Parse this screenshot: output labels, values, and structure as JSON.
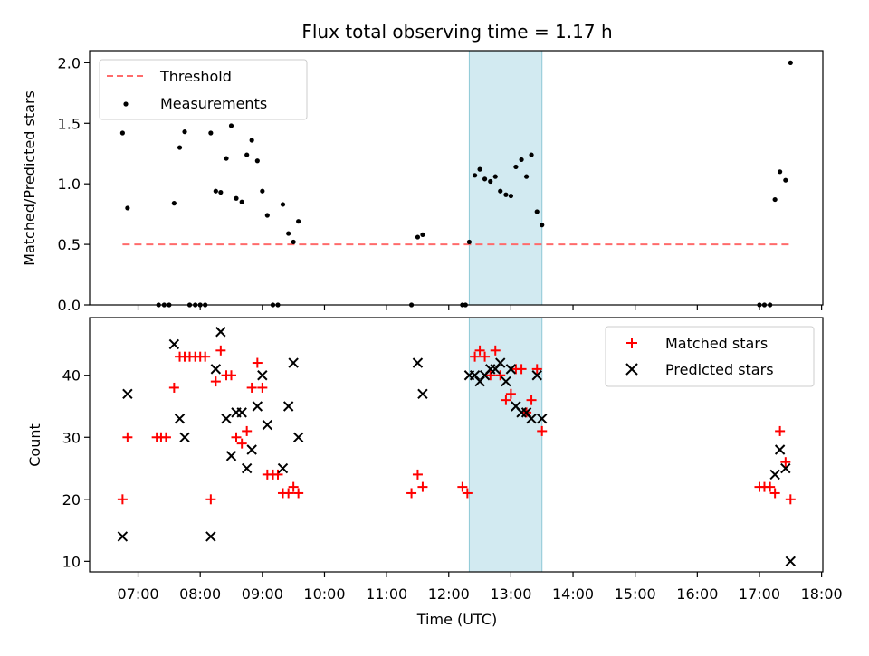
{
  "chart_data": {
    "title": "Flux total observing time = 1.17 h",
    "type": "scatter",
    "xlabel": "Time (UTC)",
    "xlim": [
      6.22,
      18.02
    ],
    "x_ticks": [
      "07:00",
      "08:00",
      "09:00",
      "10:00",
      "11:00",
      "12:00",
      "13:00",
      "14:00",
      "15:00",
      "16:00",
      "17:00",
      "18:00"
    ],
    "x_tick_values": [
      7,
      8,
      9,
      10,
      11,
      12,
      13,
      14,
      15,
      16,
      17,
      18
    ],
    "highlight_span": {
      "x0": 12.33,
      "x1": 13.5,
      "color": "#add8e6"
    },
    "top": {
      "ylabel": "Matched/Predicted stars",
      "ylim": [
        0,
        2.1
      ],
      "y_ticks": [
        "0.0",
        "0.5",
        "1.0",
        "1.5",
        "2.0"
      ],
      "y_tick_values": [
        0,
        0.5,
        1.0,
        1.5,
        2.0
      ],
      "legend": {
        "placement": "upper-left",
        "threshold_label": "Threshold",
        "measurements_label": "Measurements"
      },
      "threshold": {
        "value": 0.5,
        "x0": 6.75,
        "x1": 17.5,
        "color": "#ff6b6b"
      },
      "measurements": {
        "color": "#000000",
        "x": [
          6.75,
          6.83,
          7.33,
          7.42,
          7.5,
          7.58,
          7.67,
          7.75,
          7.83,
          7.92,
          8.0,
          8.08,
          8.17,
          8.25,
          8.33,
          8.42,
          8.5,
          8.58,
          8.67,
          8.75,
          8.83,
          8.92,
          9.0,
          9.08,
          9.17,
          9.25,
          9.33,
          9.42,
          9.5,
          9.58,
          11.4,
          11.5,
          11.58,
          12.22,
          12.27,
          12.33,
          12.42,
          12.5,
          12.58,
          12.67,
          12.75,
          12.83,
          12.92,
          13.0,
          13.08,
          13.17,
          13.25,
          13.33,
          13.42,
          13.5,
          17.0,
          17.08,
          17.17,
          17.25,
          17.33,
          17.42,
          17.5
        ],
        "y": [
          1.42,
          0.8,
          0.0,
          0.0,
          0.0,
          0.84,
          1.3,
          1.43,
          0.0,
          0.0,
          0.0,
          0.0,
          1.42,
          0.94,
          0.93,
          1.21,
          1.48,
          0.88,
          0.85,
          1.24,
          1.36,
          1.19,
          0.94,
          0.74,
          0.0,
          0.0,
          0.83,
          0.59,
          0.52,
          0.69,
          0.0,
          0.56,
          0.58,
          0.0,
          0.0,
          0.52,
          1.07,
          1.12,
          1.04,
          1.02,
          1.06,
          0.94,
          0.91,
          0.9,
          1.14,
          1.2,
          1.06,
          1.24,
          0.77,
          0.66,
          0.0,
          0.0,
          0.0,
          0.87,
          1.1,
          1.03,
          2.0
        ]
      }
    },
    "bottom": {
      "ylabel": "Count",
      "ylim": [
        8.3,
        49.3
      ],
      "y_ticks": [
        "10",
        "20",
        "30",
        "40"
      ],
      "y_tick_values": [
        10,
        20,
        30,
        40
      ],
      "legend": {
        "placement": "upper-right"
      },
      "series": [
        {
          "name": "Matched stars",
          "marker": "plus",
          "color": "#ff0000",
          "x": [
            6.75,
            6.83,
            7.3,
            7.37,
            7.45,
            7.58,
            7.67,
            7.75,
            7.83,
            7.92,
            8.0,
            8.08,
            8.17,
            8.25,
            8.33,
            8.42,
            8.5,
            8.58,
            8.67,
            8.75,
            8.83,
            8.92,
            9.0,
            9.08,
            9.17,
            9.25,
            9.33,
            9.42,
            9.5,
            9.58,
            11.4,
            11.5,
            11.58,
            12.22,
            12.3,
            12.42,
            12.5,
            12.58,
            12.67,
            12.75,
            12.83,
            12.92,
            13.0,
            13.08,
            13.17,
            13.25,
            13.33,
            13.42,
            13.5,
            17.0,
            17.08,
            17.17,
            17.25,
            17.33,
            17.42,
            17.5
          ],
          "y": [
            20,
            30,
            30,
            30,
            30,
            38,
            43,
            43,
            43,
            43,
            43,
            43,
            20,
            39,
            44,
            40,
            40,
            30,
            29,
            31,
            38,
            42,
            38,
            24,
            24,
            24,
            21,
            21,
            22,
            21,
            21,
            24,
            22,
            22,
            21,
            43,
            44,
            43,
            40,
            44,
            40,
            36,
            37,
            41,
            41,
            34,
            36,
            41,
            31,
            22,
            22,
            22,
            21,
            31,
            26,
            20
          ]
        },
        {
          "name": "Predicted stars",
          "marker": "cross",
          "color": "#000000",
          "x": [
            6.75,
            6.83,
            7.58,
            7.67,
            7.75,
            8.17,
            8.25,
            8.33,
            8.42,
            8.5,
            8.58,
            8.67,
            8.75,
            8.83,
            8.92,
            9.0,
            9.08,
            9.33,
            9.42,
            9.5,
            9.58,
            11.5,
            11.58,
            12.33,
            12.42,
            12.5,
            12.58,
            12.67,
            12.75,
            12.83,
            12.92,
            13.0,
            13.08,
            13.17,
            13.25,
            13.33,
            13.42,
            13.5,
            17.25,
            17.33,
            17.42,
            17.5
          ],
          "y": [
            14,
            37,
            45,
            33,
            30,
            14,
            41,
            47,
            33,
            27,
            34,
            34,
            25,
            28,
            35,
            40,
            32,
            25,
            35,
            42,
            30,
            42,
            37,
            40,
            40,
            39,
            40,
            41,
            41,
            42,
            39,
            41,
            35,
            34,
            34,
            33,
            40,
            33,
            24,
            28,
            25,
            10
          ]
        }
      ]
    }
  }
}
